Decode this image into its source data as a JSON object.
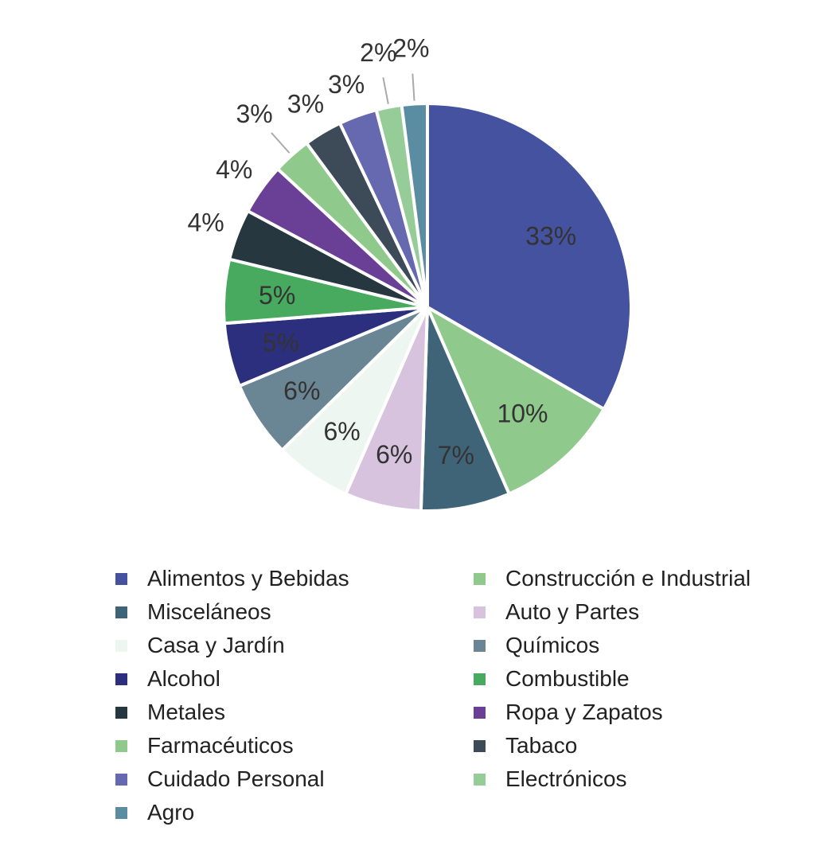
{
  "chart_data": {
    "type": "pie",
    "title": "",
    "start": "top, clockwise",
    "legend_position": "bottom",
    "slices": [
      {
        "label": "Alimentos y Bebidas",
        "value": 33,
        "text": "33%",
        "color": "#4452a0"
      },
      {
        "label": "Construcción e Industrial",
        "value": 10,
        "text": "10%",
        "color": "#8fca8c"
      },
      {
        "label": "Misceláneos",
        "value": 7,
        "text": "7%",
        "color": "#3f6478"
      },
      {
        "label": "Auto y Partes",
        "value": 6,
        "text": "6%",
        "color": "#d8c3df"
      },
      {
        "label": "Casa y Jardín",
        "value": 6,
        "text": "6%",
        "color": "#eef6f1"
      },
      {
        "label": "Químicos",
        "value": 6,
        "text": "6%",
        "color": "#6a8594"
      },
      {
        "label": "Alcohol",
        "value": 5,
        "text": "5%",
        "color": "#2c2f7e"
      },
      {
        "label": "Combustible",
        "value": 5,
        "text": "5%",
        "color": "#48aa5e"
      },
      {
        "label": "Metales",
        "value": 4,
        "text": "4%",
        "color": "#26373f"
      },
      {
        "label": "Ropa y Zapatos",
        "value": 4,
        "text": "4%",
        "color": "#6a3f96"
      },
      {
        "label": "Farmacéuticos",
        "value": 3,
        "text": "3%",
        "color": "#8fca8c"
      },
      {
        "label": "Tabaco",
        "value": 3,
        "text": "3%",
        "color": "#3d4a57"
      },
      {
        "label": "Cuidado Personal",
        "value": 3,
        "text": "3%",
        "color": "#6668b0"
      },
      {
        "label": "Electrónicos",
        "value": 2,
        "text": "2%",
        "color": "#95cc98"
      },
      {
        "label": "Agro",
        "value": 2,
        "text": "2%",
        "color": "#5b8da2"
      }
    ]
  }
}
